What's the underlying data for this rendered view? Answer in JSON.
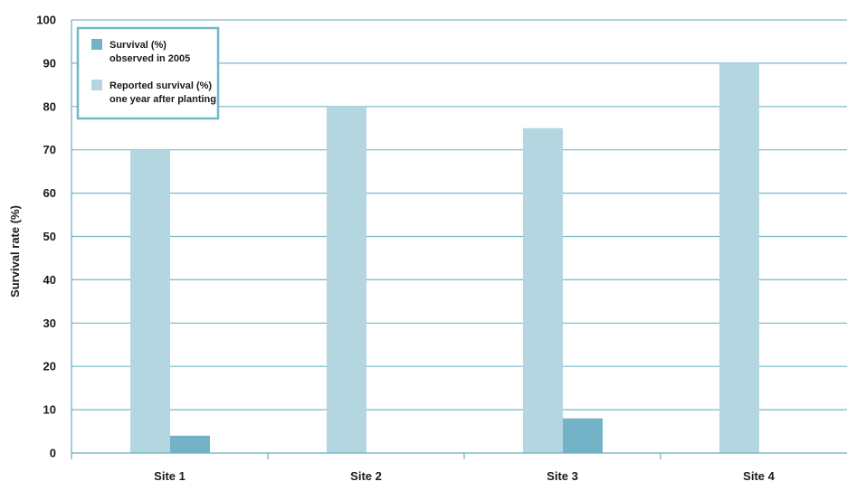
{
  "chart_data": {
    "type": "bar",
    "title": "",
    "xlabel": "",
    "ylabel": "Survival rate (%)",
    "ylim": [
      0,
      100
    ],
    "yticks": [
      0,
      10,
      20,
      30,
      40,
      50,
      60,
      70,
      80,
      90,
      100
    ],
    "categories": [
      "Site 1",
      "Site 2",
      "Site 3",
      "Site 4"
    ],
    "series": [
      {
        "name": "Reported survival (%) one year after planting",
        "legend_lines": [
          "Reported survival (%)",
          "one year after planting"
        ],
        "color": "#b3d6e0",
        "values": [
          70,
          80,
          75,
          90
        ]
      },
      {
        "name": "Survival (%) observed in 2005",
        "legend_lines": [
          "Survival (%)",
          "observed in 2005"
        ],
        "color": "#74b3c7",
        "values": [
          4,
          0,
          8,
          0
        ]
      }
    ],
    "legend_order": [
      1,
      0
    ],
    "legend_position": "top-left",
    "grid": true,
    "grid_color": "#74b8c8",
    "axis_color": "#6aaebe",
    "legend_border_color": "#74b8c8"
  }
}
